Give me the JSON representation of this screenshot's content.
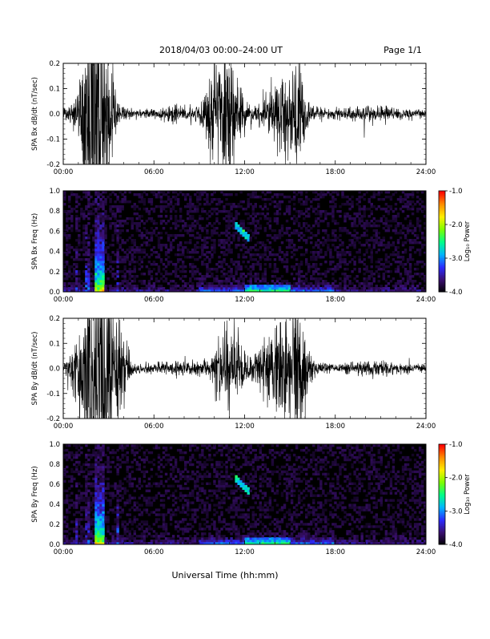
{
  "header": {
    "title": "2018/04/03  00:00–24:00 UT",
    "page": "Page 1/1"
  },
  "footer": {
    "xlabel": "Universal Time (hh:mm)"
  },
  "colorbar": {
    "label": "Log₁₀ Power",
    "ticks": [
      "-1.0",
      "-2.0",
      "-3.0",
      "-4.0"
    ],
    "values": [
      -1.0,
      -2.0,
      -3.0,
      -4.0
    ],
    "range": [
      -4.0,
      -1.0
    ],
    "colors": [
      "#000000",
      "#3a0f6e",
      "#2b2bff",
      "#00b4ff",
      "#00ff88",
      "#7dff00",
      "#ffee00",
      "#ff8c00",
      "#ff0000"
    ]
  },
  "chart_data": [
    {
      "type": "line",
      "ylabel": "SPA Bx dB/dt (nT/sec)",
      "x_ticks": [
        "00:00",
        "06:00",
        "12:00",
        "18:00",
        "24:00"
      ],
      "x_hours": [
        0,
        6,
        12,
        18,
        24
      ],
      "y_ticks": [
        "0.2",
        "0.1",
        "0.0",
        "-0.1",
        "-0.2"
      ],
      "y_values": [
        0.2,
        0.1,
        0.0,
        -0.1,
        -0.2
      ],
      "ylim": [
        -0.2,
        0.2
      ],
      "xlim_hours": [
        0,
        24
      ],
      "bursts": [
        {
          "center_h": 2.3,
          "width_h": 0.8,
          "amp": 0.3
        },
        {
          "center_h": 1.5,
          "width_h": 0.6,
          "amp": 0.06
        },
        {
          "center_h": 10.8,
          "width_h": 1.0,
          "amp": 0.12
        },
        {
          "center_h": 9.8,
          "width_h": 0.4,
          "amp": 0.06
        },
        {
          "center_h": 14.8,
          "width_h": 1.2,
          "amp": 0.07
        },
        {
          "center_h": 15.6,
          "width_h": 0.4,
          "amp": 0.05
        }
      ],
      "base_amp": 0.012
    },
    {
      "type": "heatmap",
      "ylabel": "SPA Bx Freq (Hz)",
      "x_ticks": [
        "00:00",
        "06:00",
        "12:00",
        "18:00",
        "24:00"
      ],
      "x_hours": [
        0,
        6,
        12,
        18,
        24
      ],
      "y_ticks": [
        "1.0",
        "0.8",
        "0.6",
        "0.4",
        "0.2",
        "0.0"
      ],
      "y_values": [
        1.0,
        0.8,
        0.6,
        0.4,
        0.2,
        0.0
      ],
      "ylim": [
        0,
        1.0
      ],
      "zlim": [
        -4.0,
        -1.0
      ]
    },
    {
      "type": "line",
      "ylabel": "SPA By dB/dt (nT/sec)",
      "x_ticks": [
        "00:00",
        "06:00",
        "12:00",
        "18:00",
        "24:00"
      ],
      "x_hours": [
        0,
        6,
        12,
        18,
        24
      ],
      "y_ticks": [
        "0.2",
        "0.1",
        "0.0",
        "-0.1",
        "-0.2"
      ],
      "y_values": [
        0.2,
        0.1,
        0.0,
        -0.1,
        -0.2
      ],
      "ylim": [
        -0.2,
        0.2
      ],
      "xlim_hours": [
        0,
        24
      ],
      "bursts": [
        {
          "center_h": 2.4,
          "width_h": 0.9,
          "amp": 0.28
        },
        {
          "center_h": 1.2,
          "width_h": 0.8,
          "amp": 0.05
        },
        {
          "center_h": 3.8,
          "width_h": 0.5,
          "amp": 0.08
        },
        {
          "center_h": 11.0,
          "width_h": 0.9,
          "amp": 0.08
        },
        {
          "center_h": 14.5,
          "width_h": 1.4,
          "amp": 0.09
        },
        {
          "center_h": 15.6,
          "width_h": 0.5,
          "amp": 0.06
        }
      ],
      "base_amp": 0.012
    },
    {
      "type": "heatmap",
      "ylabel": "SPA By Freq (Hz)",
      "x_ticks": [
        "00:00",
        "06:00",
        "12:00",
        "18:00",
        "24:00"
      ],
      "x_hours": [
        0,
        6,
        12,
        18,
        24
      ],
      "y_ticks": [
        "1.0",
        "0.8",
        "0.6",
        "0.4",
        "0.2",
        "0.0"
      ],
      "y_values": [
        1.0,
        0.8,
        0.6,
        0.4,
        0.2,
        0.0
      ],
      "ylim": [
        0,
        1.0
      ],
      "zlim": [
        -4.0,
        -1.0
      ]
    }
  ]
}
